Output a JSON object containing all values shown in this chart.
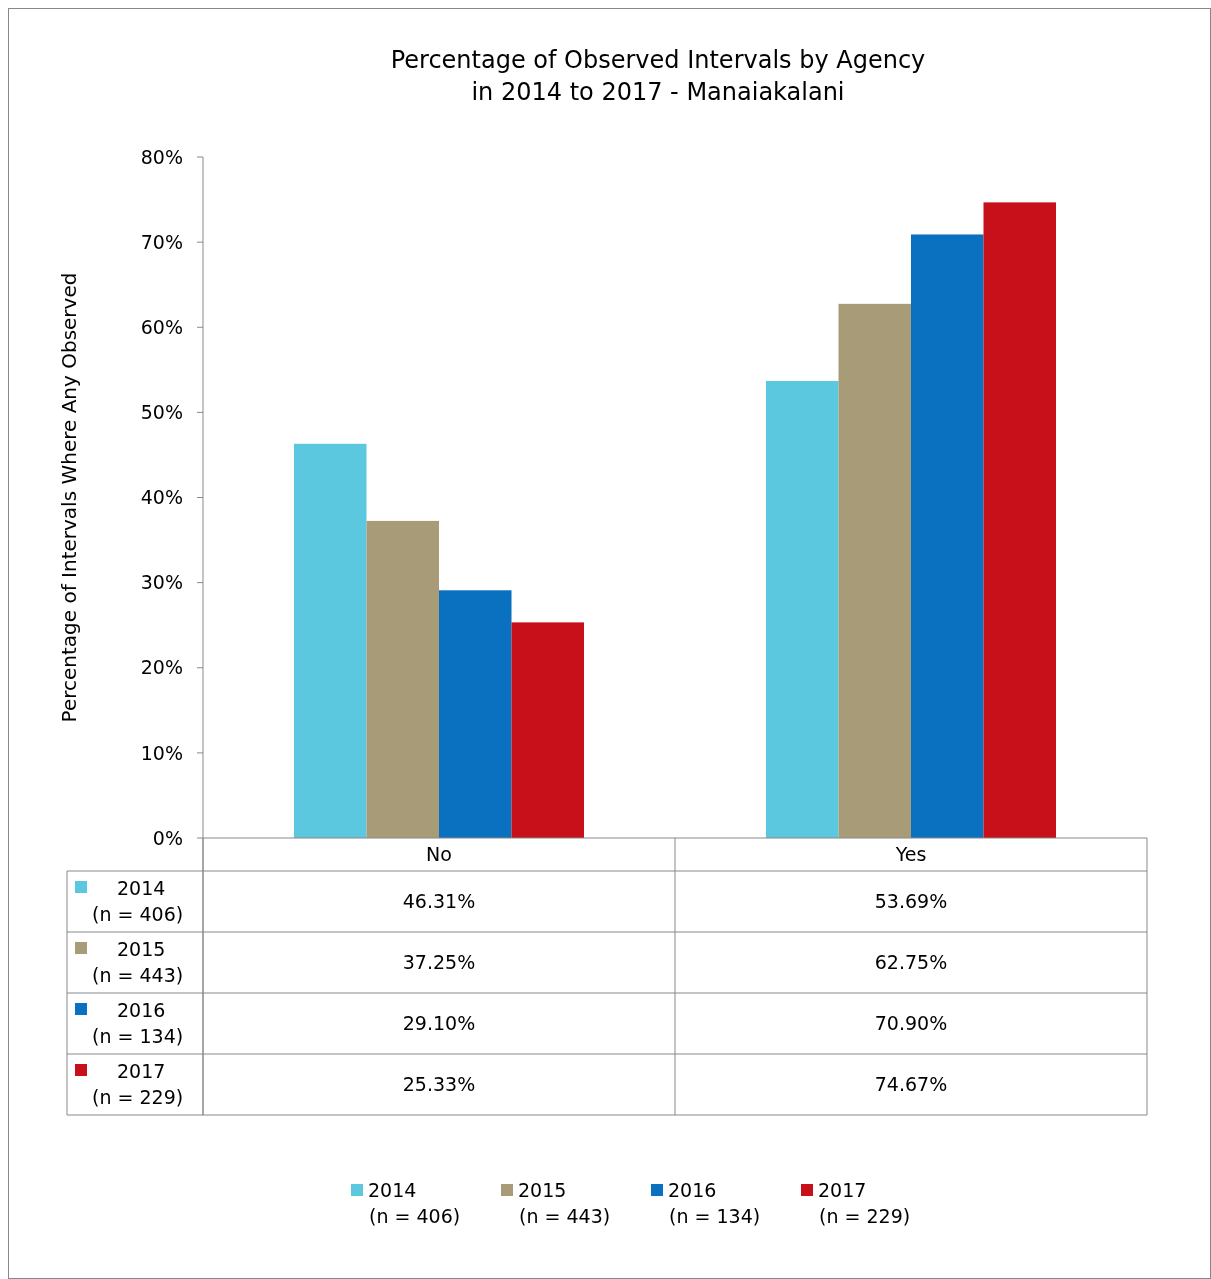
{
  "chart_data": {
    "type": "bar",
    "title": "Percentage of Observed Intervals by Agency\nin 2014 to 2017 - Manaiakalani",
    "ylabel": "Percentage of Intervals Where Any Observed",
    "categories": [
      "No",
      "Yes"
    ],
    "series": [
      {
        "name": "2014\n(n = 406)",
        "color": "#5bc8e0",
        "values": [
          46.31,
          53.69
        ],
        "value_labels": [
          "46.31%",
          "53.69%"
        ]
      },
      {
        "name": "2015\n(n = 443)",
        "color": "#a89c78",
        "values": [
          37.25,
          62.75
        ],
        "value_labels": [
          "37.25%",
          "62.75%"
        ]
      },
      {
        "name": "2016\n(n = 134)",
        "color": "#0a70c0",
        "values": [
          29.1,
          70.9
        ],
        "value_labels": [
          "29.10%",
          "70.90%"
        ]
      },
      {
        "name": "2017\n(n = 229)",
        "color": "#c8101a",
        "values": [
          25.33,
          74.67
        ],
        "value_labels": [
          "25.33%",
          "74.67%"
        ]
      }
    ],
    "ylim": [
      0,
      80
    ],
    "yticks": [
      {
        "value": 0,
        "label": "0%"
      },
      {
        "value": 10,
        "label": "10%"
      },
      {
        "value": 20,
        "label": "20%"
      },
      {
        "value": 30,
        "label": "30%"
      },
      {
        "value": 40,
        "label": "40%"
      },
      {
        "value": 50,
        "label": "50%"
      },
      {
        "value": 60,
        "label": "60%"
      },
      {
        "value": 70,
        "label": "70%"
      },
      {
        "value": 80,
        "label": "80%"
      }
    ],
    "grid": false,
    "legend": "bottom"
  }
}
